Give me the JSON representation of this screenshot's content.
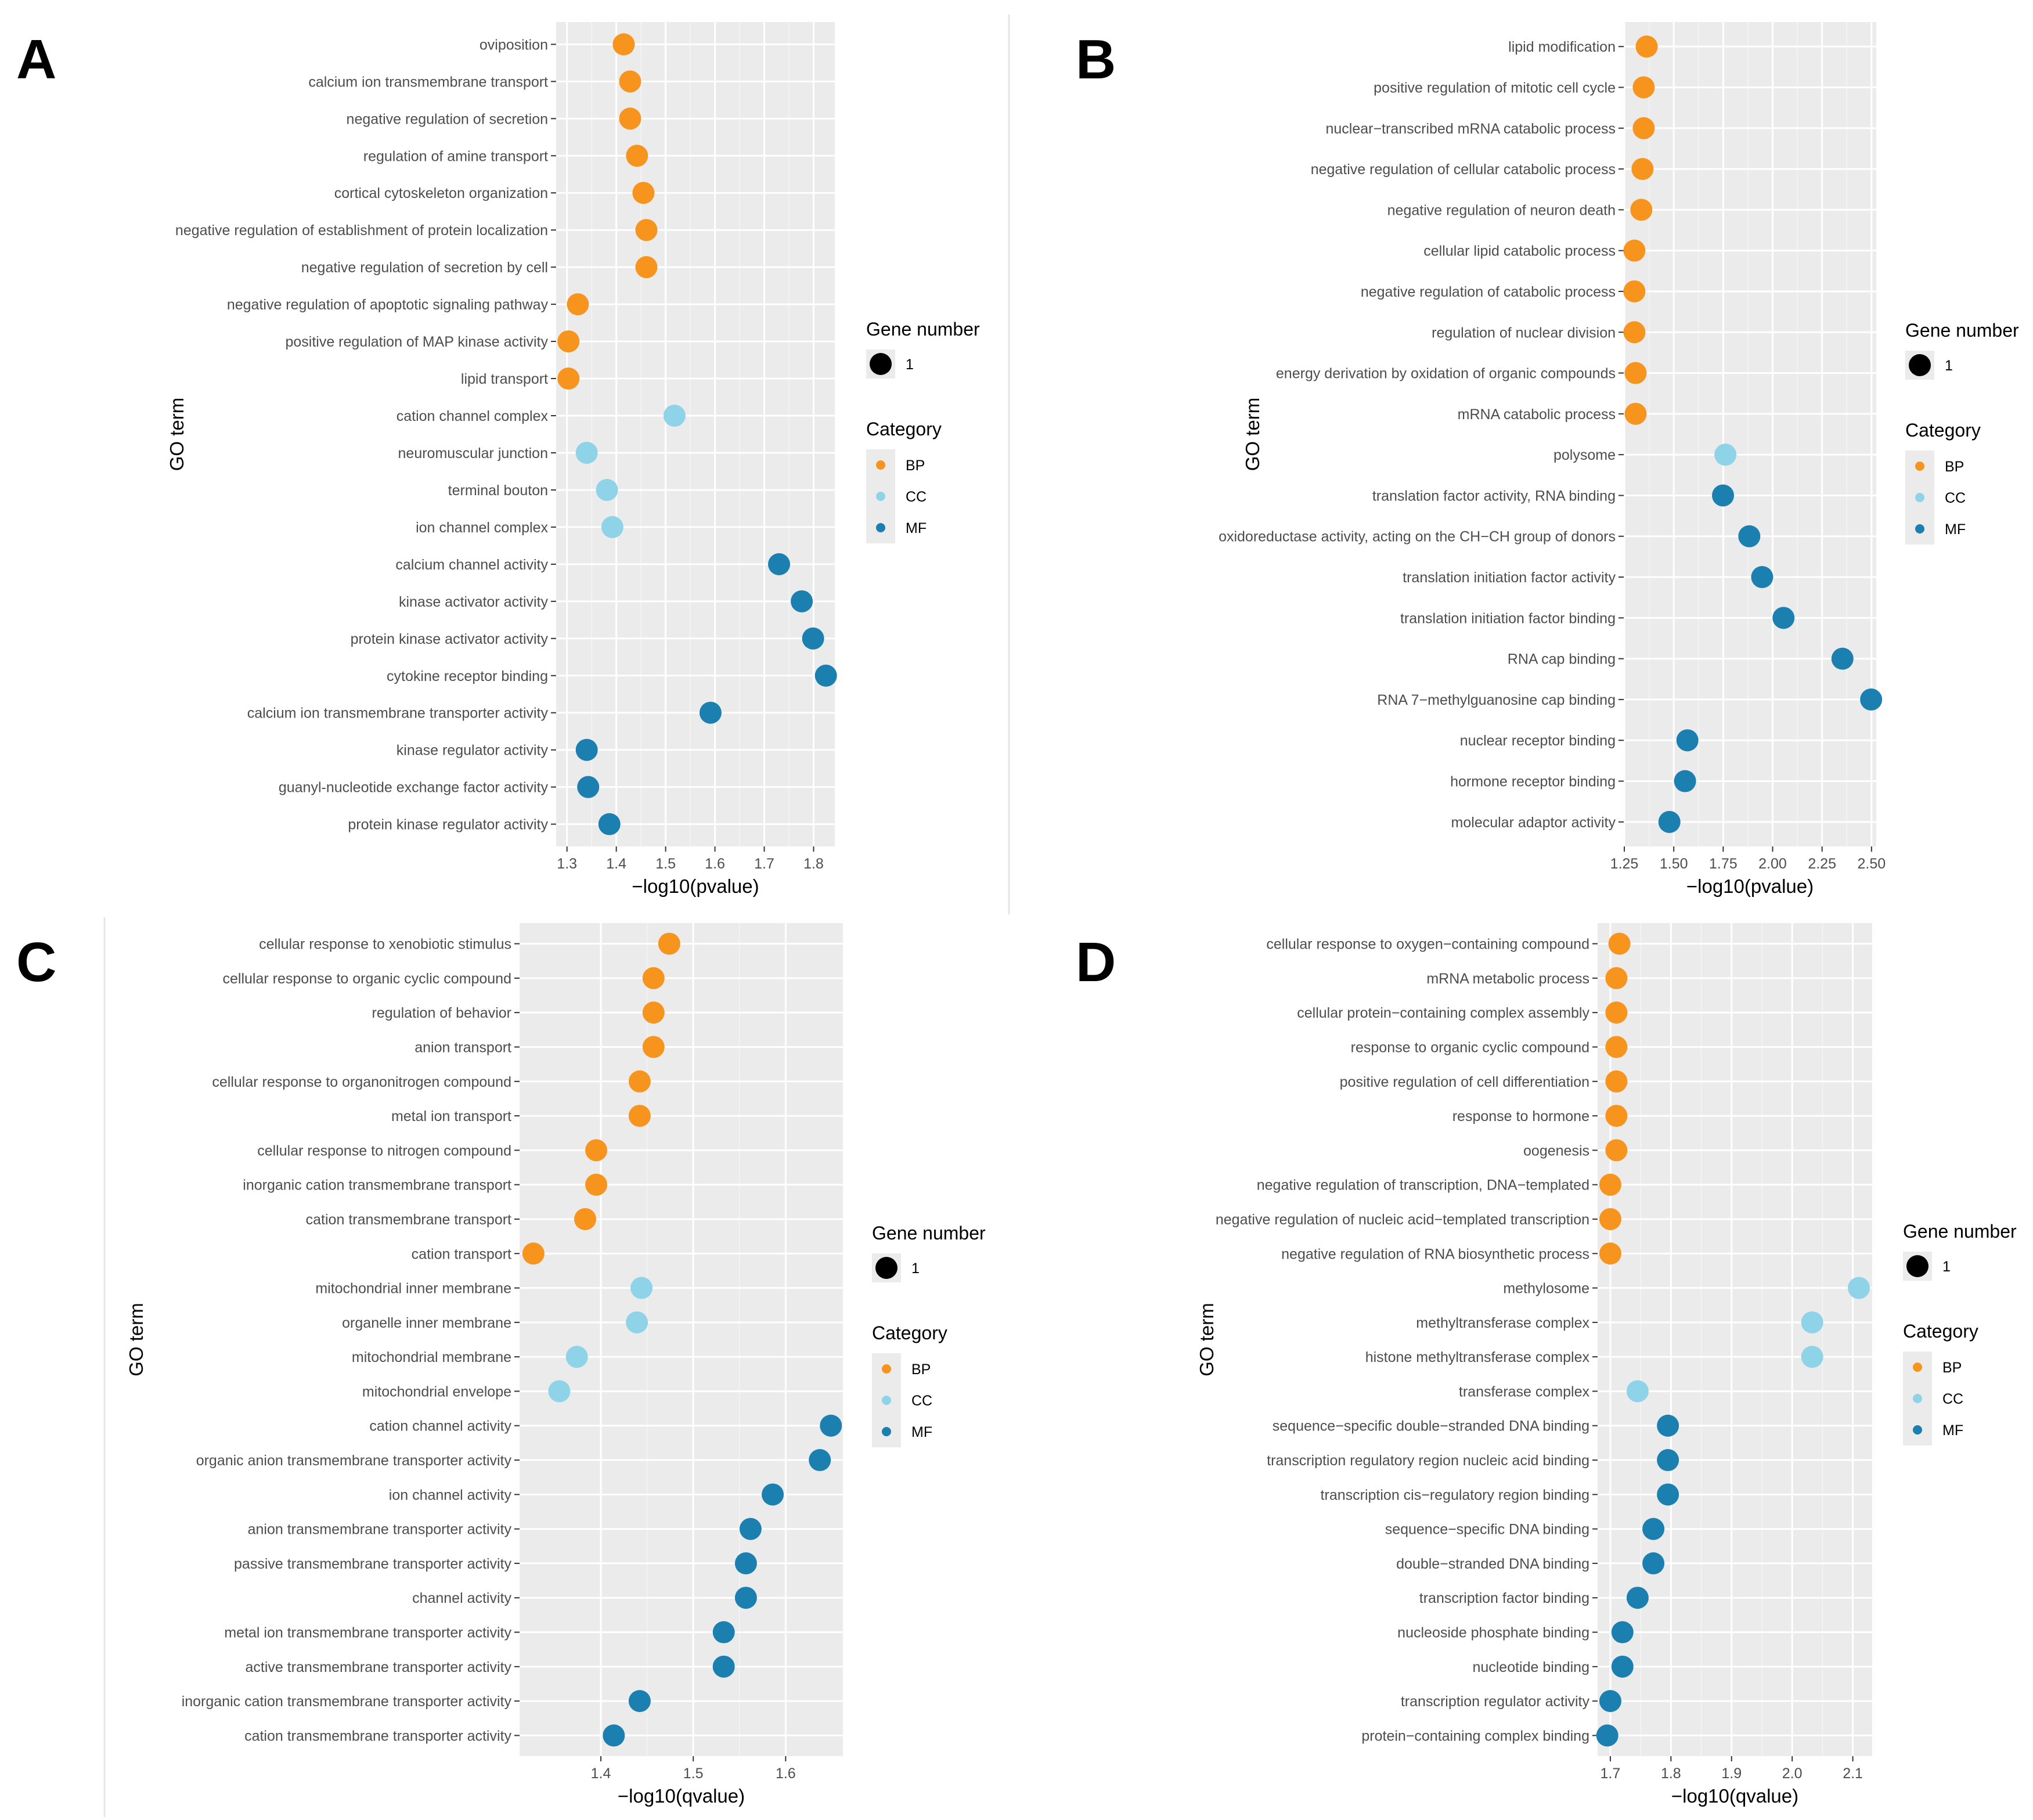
{
  "colors": {
    "BP": "#f7941d",
    "CC": "#8fd3e8",
    "MF": "#1b7fb0"
  },
  "chart_data": [
    {
      "panel": "A",
      "type": "scatter",
      "xlabel": "−log10(pvalue)",
      "ylabel": "GO term",
      "xlim": [
        1.278,
        1.843
      ],
      "xticks": [
        "1.3",
        "1.4",
        "1.5",
        "1.6",
        "1.7",
        "1.8"
      ],
      "legend": {
        "size_title": "Gene number",
        "size_label": "1",
        "category_title": "Category",
        "categories": [
          "BP",
          "CC",
          "MF"
        ]
      },
      "terms": [
        {
          "label": "oviposition",
          "x": 1.415,
          "category": "BP"
        },
        {
          "label": "calcium ion transmembrane transport",
          "x": 1.428,
          "category": "BP"
        },
        {
          "label": "negative regulation of secretion",
          "x": 1.428,
          "category": "BP"
        },
        {
          "label": "regulation of amine transport",
          "x": 1.442,
          "category": "BP"
        },
        {
          "label": "cortical cytoskeleton organization",
          "x": 1.455,
          "category": "BP"
        },
        {
          "label": "negative regulation of establishment of protein localization",
          "x": 1.461,
          "category": "BP"
        },
        {
          "label": "negative regulation of secretion by cell",
          "x": 1.461,
          "category": "BP"
        },
        {
          "label": "negative regulation of apoptotic signaling pathway",
          "x": 1.322,
          "category": "BP"
        },
        {
          "label": "positive regulation of MAP kinase activity",
          "x": 1.303,
          "category": "BP"
        },
        {
          "label": "lipid transport",
          "x": 1.303,
          "category": "BP"
        },
        {
          "label": "cation channel complex",
          "x": 1.518,
          "category": "CC"
        },
        {
          "label": "neuromuscular junction",
          "x": 1.34,
          "category": "CC"
        },
        {
          "label": "terminal bouton",
          "x": 1.381,
          "category": "CC"
        },
        {
          "label": "ion channel complex",
          "x": 1.392,
          "category": "CC"
        },
        {
          "label": "calcium channel activity",
          "x": 1.73,
          "category": "MF"
        },
        {
          "label": "kinase activator activity",
          "x": 1.776,
          "category": "MF"
        },
        {
          "label": "protein kinase activator activity",
          "x": 1.799,
          "category": "MF"
        },
        {
          "label": "cytokine receptor binding",
          "x": 1.825,
          "category": "MF"
        },
        {
          "label": "calcium ion transmembrane transporter activity",
          "x": 1.591,
          "category": "MF"
        },
        {
          "label": "kinase regulator activity",
          "x": 1.34,
          "category": "MF"
        },
        {
          "label": "guanyl-nucleotide exchange factor activity",
          "x": 1.343,
          "category": "MF"
        },
        {
          "label": "protein kinase regulator activity",
          "x": 1.386,
          "category": "MF"
        }
      ]
    },
    {
      "panel": "B",
      "type": "scatter",
      "xlabel": "−log10(pvalue)",
      "ylabel": "GO term",
      "xlim": [
        1.247,
        2.524
      ],
      "xticks": [
        "1.25",
        "1.50",
        "1.75",
        "2.00",
        "2.25",
        "2.50"
      ],
      "legend": {
        "size_title": "Gene number",
        "size_label": "1",
        "category_title": "Category",
        "categories": [
          "BP",
          "CC",
          "MF"
        ]
      },
      "terms": [
        {
          "label": "lipid modification",
          "x": 1.363,
          "category": "BP"
        },
        {
          "label": "positive regulation of mitotic cell cycle",
          "x": 1.348,
          "category": "BP"
        },
        {
          "label": "nuclear−transcribed mRNA catabolic process",
          "x": 1.348,
          "category": "BP"
        },
        {
          "label": "negative regulation of cellular catabolic process",
          "x": 1.342,
          "category": "BP"
        },
        {
          "label": "negative regulation of neuron death",
          "x": 1.336,
          "category": "BP"
        },
        {
          "label": "cellular lipid catabolic process",
          "x": 1.301,
          "category": "BP"
        },
        {
          "label": "negative regulation of catabolic process",
          "x": 1.301,
          "category": "BP"
        },
        {
          "label": "regulation of nuclear division",
          "x": 1.301,
          "category": "BP"
        },
        {
          "label": "energy derivation by oxidation of organic compounds",
          "x": 1.307,
          "category": "BP"
        },
        {
          "label": "mRNA catabolic process",
          "x": 1.307,
          "category": "BP"
        },
        {
          "label": "polysome",
          "x": 1.761,
          "category": "CC"
        },
        {
          "label": "translation factor activity, RNA binding",
          "x": 1.749,
          "category": "MF"
        },
        {
          "label": "oxidoreductase activity, acting on the CH−CH group of donors",
          "x": 1.882,
          "category": "MF"
        },
        {
          "label": "translation initiation factor activity",
          "x": 1.947,
          "category": "MF"
        },
        {
          "label": "translation initiation factor binding",
          "x": 2.055,
          "category": "MF"
        },
        {
          "label": "RNA cap binding",
          "x": 2.353,
          "category": "MF"
        },
        {
          "label": "RNA 7−methylguanosine cap binding",
          "x": 2.498,
          "category": "MF"
        },
        {
          "label": "nuclear receptor binding",
          "x": 1.569,
          "category": "MF"
        },
        {
          "label": "hormone receptor binding",
          "x": 1.557,
          "category": "MF"
        },
        {
          "label": "molecular adaptor activity",
          "x": 1.478,
          "category": "MF"
        }
      ]
    },
    {
      "panel": "C",
      "type": "scatter",
      "xlabel": "−log10(qvalue)",
      "ylabel": "GO term",
      "xlim": [
        1.312,
        1.662
      ],
      "xticks": [
        "1.4",
        "1.5",
        "1.6"
      ],
      "legend": {
        "size_title": "Gene number",
        "size_label": "1",
        "category_title": "Category",
        "categories": [
          "BP",
          "CC",
          "MF"
        ]
      },
      "terms": [
        {
          "label": "cellular response to xenobiotic stimulus",
          "x": 1.474,
          "category": "BP"
        },
        {
          "label": "cellular response to organic cyclic compound",
          "x": 1.457,
          "category": "BP"
        },
        {
          "label": "regulation of behavior",
          "x": 1.457,
          "category": "BP"
        },
        {
          "label": "anion transport",
          "x": 1.457,
          "category": "BP"
        },
        {
          "label": "cellular response to organonitrogen compound",
          "x": 1.442,
          "category": "BP"
        },
        {
          "label": "metal ion transport",
          "x": 1.442,
          "category": "BP"
        },
        {
          "label": "cellular response to nitrogen compound",
          "x": 1.395,
          "category": "BP"
        },
        {
          "label": "inorganic cation transmembrane transport",
          "x": 1.395,
          "category": "BP"
        },
        {
          "label": "cation transmembrane transport",
          "x": 1.383,
          "category": "BP"
        },
        {
          "label": "cation transport",
          "x": 1.327,
          "category": "BP"
        },
        {
          "label": "mitochondrial inner membrane",
          "x": 1.444,
          "category": "CC"
        },
        {
          "label": "organelle inner membrane",
          "x": 1.439,
          "category": "CC"
        },
        {
          "label": "mitochondrial membrane",
          "x": 1.374,
          "category": "CC"
        },
        {
          "label": "mitochondrial envelope",
          "x": 1.355,
          "category": "CC"
        },
        {
          "label": "cation channel activity",
          "x": 1.649,
          "category": "MF"
        },
        {
          "label": "organic anion transmembrane transporter activity",
          "x": 1.637,
          "category": "MF"
        },
        {
          "label": "ion channel activity",
          "x": 1.586,
          "category": "MF"
        },
        {
          "label": "anion transmembrane transporter activity",
          "x": 1.562,
          "category": "MF"
        },
        {
          "label": "passive transmembrane transporter activity",
          "x": 1.557,
          "category": "MF"
        },
        {
          "label": "channel activity",
          "x": 1.557,
          "category": "MF"
        },
        {
          "label": "metal ion transmembrane transporter activity",
          "x": 1.533,
          "category": "MF"
        },
        {
          "label": "active transmembrane transporter activity",
          "x": 1.533,
          "category": "MF"
        },
        {
          "label": "inorganic cation transmembrane transporter activity",
          "x": 1.442,
          "category": "MF"
        },
        {
          "label": "cation transmembrane transporter activity",
          "x": 1.414,
          "category": "MF"
        }
      ]
    },
    {
      "panel": "D",
      "type": "scatter",
      "xlabel": "−log10(qvalue)",
      "ylabel": "GO term",
      "xlim": [
        1.679,
        2.132
      ],
      "xticks": [
        "1.7",
        "1.8",
        "1.9",
        "2.0",
        "2.1"
      ],
      "legend": {
        "size_title": "Gene number",
        "size_label": "1",
        "category_title": "Category",
        "categories": [
          "BP",
          "CC",
          "MF"
        ]
      },
      "terms": [
        {
          "label": "cellular response to oxygen−containing compound",
          "x": 1.715,
          "category": "BP"
        },
        {
          "label": "mRNA metabolic process",
          "x": 1.71,
          "category": "BP"
        },
        {
          "label": "cellular protein−containing complex assembly",
          "x": 1.71,
          "category": "BP"
        },
        {
          "label": "response to organic cyclic compound",
          "x": 1.71,
          "category": "BP"
        },
        {
          "label": "positive regulation of cell differentiation",
          "x": 1.71,
          "category": "BP"
        },
        {
          "label": "response to hormone",
          "x": 1.71,
          "category": "BP"
        },
        {
          "label": "oogenesis",
          "x": 1.71,
          "category": "BP"
        },
        {
          "label": "negative regulation of transcription, DNA−templated",
          "x": 1.7,
          "category": "BP"
        },
        {
          "label": "negative regulation of nucleic acid−templated transcription",
          "x": 1.7,
          "category": "BP"
        },
        {
          "label": "negative regulation of RNA biosynthetic process",
          "x": 1.7,
          "category": "BP"
        },
        {
          "label": "methylosome",
          "x": 2.11,
          "category": "CC"
        },
        {
          "label": "methyltransferase complex",
          "x": 2.033,
          "category": "CC"
        },
        {
          "label": "histone methyltransferase complex",
          "x": 2.033,
          "category": "CC"
        },
        {
          "label": "transferase complex",
          "x": 1.745,
          "category": "CC"
        },
        {
          "label": "sequence−specific double−stranded DNA binding",
          "x": 1.795,
          "category": "MF"
        },
        {
          "label": "transcription regulatory region nucleic acid binding",
          "x": 1.795,
          "category": "MF"
        },
        {
          "label": "transcription cis−regulatory region binding",
          "x": 1.795,
          "category": "MF"
        },
        {
          "label": "sequence−specific DNA binding",
          "x": 1.771,
          "category": "MF"
        },
        {
          "label": "double−stranded DNA binding",
          "x": 1.771,
          "category": "MF"
        },
        {
          "label": "transcription factor binding",
          "x": 1.745,
          "category": "MF"
        },
        {
          "label": "nucleoside phosphate binding",
          "x": 1.72,
          "category": "MF"
        },
        {
          "label": "nucleotide binding",
          "x": 1.72,
          "category": "MF"
        },
        {
          "label": "transcription regulator activity",
          "x": 1.7,
          "category": "MF"
        },
        {
          "label": "protein−containing complex binding",
          "x": 1.695,
          "category": "MF"
        }
      ]
    }
  ]
}
